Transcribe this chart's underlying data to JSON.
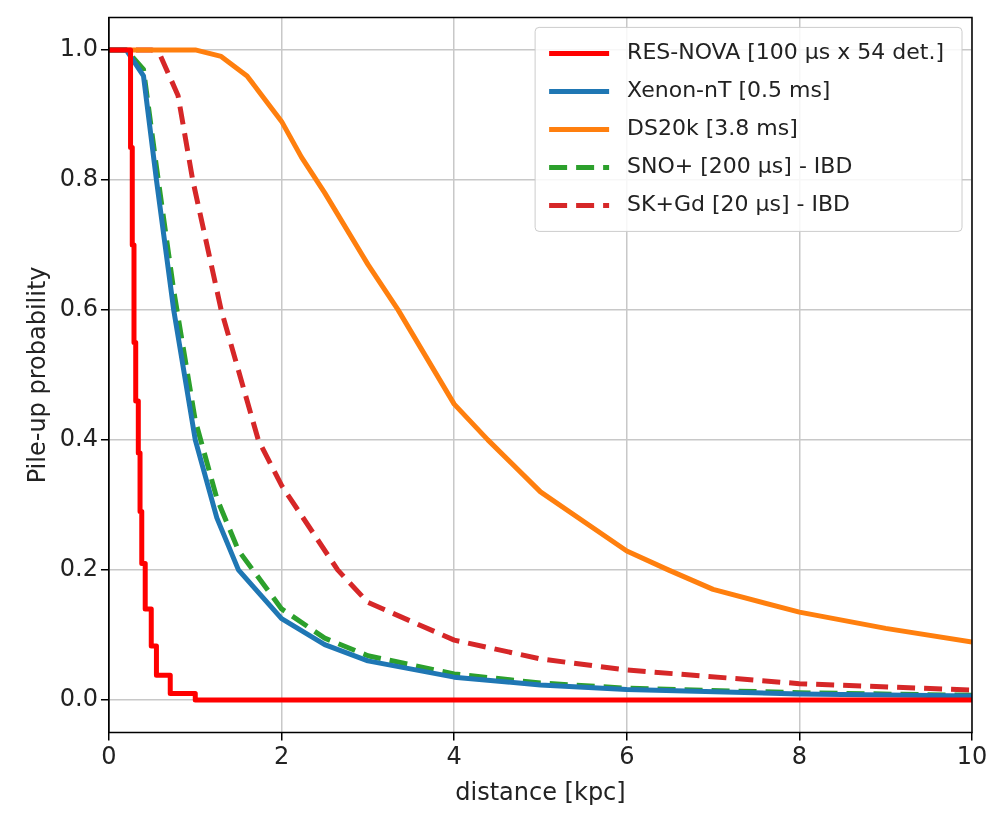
{
  "chart_data": {
    "type": "line",
    "xlabel": "distance [kpc]",
    "ylabel": "Pile-up probability",
    "xlim": [
      0,
      10
    ],
    "xticks": [
      0,
      2,
      4,
      6,
      8,
      10
    ],
    "ylim": [
      -0.05,
      1.05
    ],
    "yticks": [
      {
        "value": 0,
        "label": "0.0"
      },
      {
        "value": 0.2,
        "label": "0.2"
      },
      {
        "value": 0.4,
        "label": "0.4"
      },
      {
        "value": 0.6,
        "label": "0.6"
      },
      {
        "value": 0.8,
        "label": "0.8"
      },
      {
        "value": 1,
        "label": "1.0"
      }
    ],
    "grid": true,
    "legend": "top right",
    "line_style": "solid",
    "series": [
      {
        "name": "RES-NOVA [100 μs x 54 det.]",
        "type": "step",
        "color": "#ff0000",
        "x": [
          0,
          0.25,
          0.27,
          0.29,
          0.31,
          0.34,
          0.36,
          0.38,
          0.42,
          0.49,
          0.55,
          0.71,
          1.0,
          10
        ],
        "values": [
          1,
          0.85,
          0.7,
          0.55,
          0.46,
          0.38,
          0.29,
          0.21,
          0.14,
          0.083,
          0.038,
          0.01,
          0,
          0
        ]
      },
      {
        "name": "Xenon-nT [0.5 ms]",
        "color": "#1f77b4",
        "x": [
          0,
          0.2,
          0.4,
          0.55,
          0.75,
          1.0,
          1.25,
          1.5,
          2,
          2.5,
          3,
          4,
          5,
          6,
          8,
          10
        ],
        "values": [
          1,
          1,
          0.96,
          0.8,
          0.6,
          0.4,
          0.28,
          0.2,
          0.125,
          0.085,
          0.06,
          0.035,
          0.023,
          0.016,
          0.009,
          0.006
        ]
      },
      {
        "name": "DS20k [3.8 ms]",
        "color": "#ff7f0e",
        "x": [
          0,
          1,
          1.3,
          1.6,
          2,
          2.23,
          2.5,
          3,
          3.35,
          4,
          4.39,
          5,
          6,
          6.48,
          7,
          8,
          9,
          10
        ],
        "values": [
          1,
          1,
          0.99,
          0.96,
          0.89,
          0.835,
          0.78,
          0.67,
          0.6,
          0.455,
          0.4,
          0.32,
          0.229,
          0.2,
          0.17,
          0.135,
          0.11,
          0.089
        ]
      },
      {
        "name": "SNO+ [200 μs] - IBD",
        "color": "#2ca02c",
        "line_style": "dashed",
        "x": [
          0,
          0.2,
          0.4,
          0.55,
          0.75,
          1.0,
          1.25,
          1.5,
          2,
          2.5,
          3,
          4,
          5,
          6,
          8,
          10
        ],
        "values": [
          1,
          1,
          0.97,
          0.82,
          0.63,
          0.43,
          0.31,
          0.23,
          0.14,
          0.095,
          0.068,
          0.04,
          0.026,
          0.018,
          0.011,
          0.007
        ]
      },
      {
        "name": "SK+Gd [20 μs] - IBD",
        "color": "#d62728",
        "line_style": "dashed",
        "x": [
          0,
          0.5,
          0.6,
          0.8,
          0.97,
          1.3,
          1.73,
          2,
          2.65,
          3,
          4,
          5,
          6,
          8,
          10
        ],
        "values": [
          1,
          1,
          0.99,
          0.93,
          0.8,
          0.6,
          0.4,
          0.33,
          0.2,
          0.15,
          0.092,
          0.063,
          0.046,
          0.025,
          0.015
        ]
      }
    ]
  }
}
